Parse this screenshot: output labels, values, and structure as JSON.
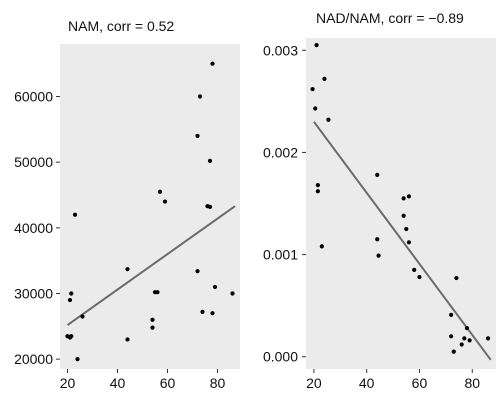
{
  "chart_data": [
    {
      "type": "scatter",
      "title": "NAM, corr = 0.52",
      "xlim": [
        17,
        89
      ],
      "ylim": [
        18500,
        68000
      ],
      "x_ticks": [
        "20",
        "40",
        "60",
        "80"
      ],
      "x_tick_values": [
        20,
        40,
        60,
        80
      ],
      "y_ticks": [
        "20000",
        "30000",
        "40000",
        "50000",
        "60000"
      ],
      "y_tick_values": [
        20000,
        30000,
        40000,
        50000,
        60000
      ],
      "points": [
        {
          "x": 20,
          "y": 23500
        },
        {
          "x": 21,
          "y": 23300
        },
        {
          "x": 21.5,
          "y": 23500
        },
        {
          "x": 21,
          "y": 29000
        },
        {
          "x": 21.5,
          "y": 30000
        },
        {
          "x": 23,
          "y": 42000
        },
        {
          "x": 24,
          "y": 20000
        },
        {
          "x": 26,
          "y": 26500
        },
        {
          "x": 44,
          "y": 33700
        },
        {
          "x": 44,
          "y": 23000
        },
        {
          "x": 54,
          "y": 24800
        },
        {
          "x": 54,
          "y": 26000
        },
        {
          "x": 55,
          "y": 30200
        },
        {
          "x": 56,
          "y": 30200
        },
        {
          "x": 57,
          "y": 45500
        },
        {
          "x": 59,
          "y": 44000
        },
        {
          "x": 72,
          "y": 33400
        },
        {
          "x": 72,
          "y": 54000
        },
        {
          "x": 73,
          "y": 60000
        },
        {
          "x": 74,
          "y": 27200
        },
        {
          "x": 76,
          "y": 43300
        },
        {
          "x": 77,
          "y": 43200
        },
        {
          "x": 77,
          "y": 50200
        },
        {
          "x": 78,
          "y": 27000
        },
        {
          "x": 78,
          "y": 65000
        },
        {
          "x": 79,
          "y": 31000
        },
        {
          "x": 86,
          "y": 30000
        }
      ],
      "fit_line": {
        "x": [
          20,
          87
        ],
        "y": [
          25200,
          43300
        ]
      },
      "grid": false,
      "colors": {
        "panel": "#ebebeb",
        "point": "#000000",
        "fit": "#6b6b6b"
      }
    },
    {
      "type": "scatter",
      "title": "NAD/NAM, corr = −0.89",
      "xlim": [
        17,
        89
      ],
      "ylim": [
        -0.00012,
        0.00312
      ],
      "x_ticks": [
        "20",
        "40",
        "60",
        "80"
      ],
      "x_tick_values": [
        20,
        40,
        60,
        80
      ],
      "y_ticks": [
        "0.000",
        "0.001",
        "0.002",
        "0.003"
      ],
      "y_tick_values": [
        0,
        0.001,
        0.002,
        0.003
      ],
      "points": [
        {
          "x": 19.5,
          "y": 0.00262
        },
        {
          "x": 20.5,
          "y": 0.00243
        },
        {
          "x": 21,
          "y": 0.00305
        },
        {
          "x": 21.5,
          "y": 0.00168
        },
        {
          "x": 21.5,
          "y": 0.00162
        },
        {
          "x": 23,
          "y": 0.00108
        },
        {
          "x": 24,
          "y": 0.00272
        },
        {
          "x": 25.5,
          "y": 0.00232
        },
        {
          "x": 44,
          "y": 0.00178
        },
        {
          "x": 44,
          "y": 0.00115
        },
        {
          "x": 44.5,
          "y": 0.00099
        },
        {
          "x": 54,
          "y": 0.00155
        },
        {
          "x": 54,
          "y": 0.00138
        },
        {
          "x": 55,
          "y": 0.00125
        },
        {
          "x": 56,
          "y": 0.00157
        },
        {
          "x": 56,
          "y": 0.00112
        },
        {
          "x": 58,
          "y": 0.00085
        },
        {
          "x": 60,
          "y": 0.00078
        },
        {
          "x": 72,
          "y": 0.00041
        },
        {
          "x": 72,
          "y": 0.0002
        },
        {
          "x": 73,
          "y": 5e-05
        },
        {
          "x": 74,
          "y": 0.00077
        },
        {
          "x": 76,
          "y": 0.00012
        },
        {
          "x": 77,
          "y": 0.00018
        },
        {
          "x": 78,
          "y": 0.00028
        },
        {
          "x": 79,
          "y": 0.00016
        },
        {
          "x": 86,
          "y": 0.00018
        }
      ],
      "fit_line": {
        "x": [
          20,
          87
        ],
        "y": [
          0.0023,
          -3e-05
        ]
      },
      "grid": false,
      "colors": {
        "panel": "#ebebeb",
        "point": "#000000",
        "fit": "#6b6b6b"
      }
    }
  ]
}
